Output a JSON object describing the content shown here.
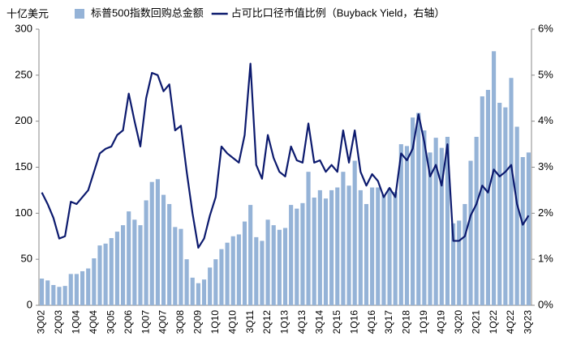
{
  "chart_data": {
    "type": "bar-line",
    "y_unit_label": "十亿美元",
    "categories": [
      "3Q02",
      null,
      null,
      "2Q03",
      null,
      null,
      "1Q04",
      null,
      null,
      "4Q04",
      null,
      null,
      "3Q05",
      null,
      null,
      "2Q06",
      null,
      null,
      "1Q07",
      null,
      null,
      "4Q07",
      null,
      null,
      "3Q08",
      null,
      null,
      "2Q09",
      null,
      null,
      "1Q10",
      null,
      null,
      "4Q10",
      null,
      null,
      "3Q11",
      null,
      null,
      "2Q12",
      null,
      null,
      "1Q13",
      null,
      null,
      "4Q13",
      null,
      null,
      "3Q14",
      null,
      null,
      "2Q15",
      null,
      null,
      "1Q16",
      null,
      null,
      "4Q16",
      null,
      null,
      "3Q17",
      null,
      null,
      "2Q18",
      null,
      null,
      "1Q19",
      null,
      null,
      "4Q19",
      null,
      null,
      "3Q20",
      null,
      null,
      "2Q21",
      null,
      null,
      "1Q22",
      null,
      null,
      "4Q22",
      null,
      null,
      "3Q23"
    ],
    "series": [
      {
        "name": "标普500指数回购总金额",
        "color": "#95b3d7",
        "kind": "bar",
        "values": [
          29,
          27,
          22,
          20,
          21,
          34,
          34,
          37,
          40,
          51,
          65,
          67,
          73,
          80,
          87,
          102,
          93,
          87,
          114,
          134,
          137,
          120,
          110,
          85,
          83,
          50,
          30,
          24,
          28,
          41,
          50,
          61,
          68,
          75,
          77,
          91,
          109,
          74,
          70,
          93,
          87,
          82,
          84,
          109,
          105,
          111,
          145,
          117,
          125,
          116,
          125,
          128,
          145,
          130,
          157,
          125,
          110,
          128,
          128,
          120,
          127,
          123,
          175,
          173,
          204,
          209,
          190,
          166,
          182,
          171,
          183,
          89,
          92,
          110,
          157,
          183,
          227,
          234,
          276,
          220,
          215,
          247,
          194,
          161,
          166
        ]
      },
      {
        "name": "占可比口径市值比例（Buyback Yield，右轴）",
        "color": "#0c1a6e",
        "kind": "line",
        "axis": "y2",
        "values": [
          2.45,
          2.2,
          1.9,
          1.45,
          1.5,
          2.25,
          2.2,
          2.35,
          2.5,
          2.9,
          3.3,
          3.4,
          3.45,
          3.7,
          3.8,
          4.6,
          4.0,
          3.45,
          4.5,
          5.05,
          5.0,
          4.65,
          4.8,
          3.8,
          3.9,
          2.9,
          2.0,
          1.25,
          1.45,
          1.95,
          2.35,
          3.45,
          3.3,
          3.2,
          3.1,
          3.7,
          5.25,
          3.05,
          2.75,
          3.7,
          3.2,
          2.9,
          2.8,
          3.45,
          3.15,
          3.1,
          3.95,
          3.1,
          3.15,
          2.9,
          3.05,
          2.9,
          3.8,
          3.1,
          3.8,
          2.9,
          2.6,
          2.85,
          2.7,
          2.35,
          2.55,
          2.35,
          3.3,
          3.15,
          3.4,
          4.15,
          3.55,
          2.8,
          3.05,
          2.6,
          3.5,
          1.4,
          1.4,
          1.5,
          1.95,
          2.2,
          2.6,
          2.45,
          2.95,
          2.8,
          2.9,
          3.05,
          2.2,
          1.75,
          1.95
        ]
      }
    ],
    "ylim": [
      0,
      300
    ],
    "yticks": [
      0,
      50,
      100,
      150,
      200,
      250,
      300
    ],
    "y2lim": [
      0,
      6
    ],
    "y2ticks": [
      {
        "value": 0,
        "label": "0%"
      },
      {
        "value": 1,
        "label": "1%"
      },
      {
        "value": 2,
        "label": "2%"
      },
      {
        "value": 3,
        "label": "3%"
      },
      {
        "value": 4,
        "label": "4%"
      },
      {
        "value": 5,
        "label": "5%"
      },
      {
        "value": 6,
        "label": "6%"
      }
    ]
  }
}
